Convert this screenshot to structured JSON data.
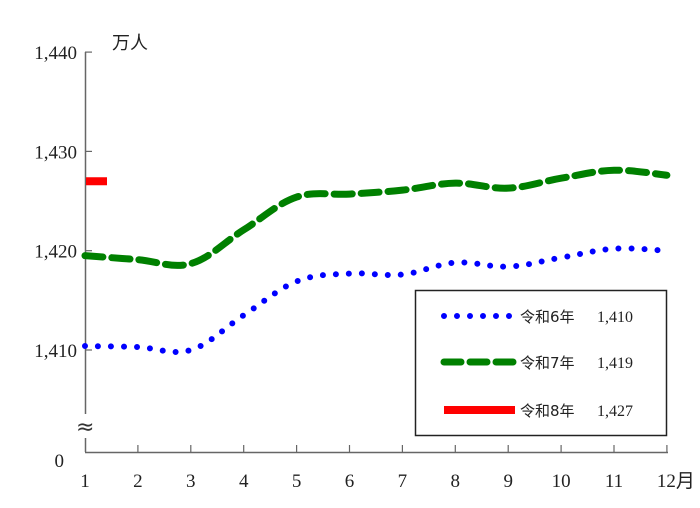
{
  "chart_data": {
    "type": "line",
    "title": "",
    "ylabel": "万人",
    "xlabel": "月",
    "y_unit_label": "万人",
    "x_unit_suffix": "月",
    "ylim": [
      1400,
      1440
    ],
    "axis_break": true,
    "y_ticks": [
      {
        "value": 1440,
        "label": "1,440"
      },
      {
        "value": 1430,
        "label": "1,430"
      },
      {
        "value": 1420,
        "label": "1,420"
      },
      {
        "value": 1410,
        "label": "1,410"
      },
      {
        "value": 0,
        "label": "0"
      }
    ],
    "categories": [
      "1",
      "2",
      "3",
      "4",
      "5",
      "6",
      "7",
      "8",
      "9",
      "10",
      "11",
      "12月"
    ],
    "x": [
      1,
      2,
      3,
      4,
      5,
      6,
      7,
      8,
      9,
      10,
      11,
      12
    ],
    "series": [
      {
        "name": "令和6年",
        "legend_value": "1,410",
        "color": "#0000ff",
        "style": "dotted",
        "values": [
          1410.4,
          1410.3,
          1410.0,
          1413.5,
          1416.9,
          1417.7,
          1417.6,
          1418.8,
          1418.4,
          1419.3,
          1420.2,
          1420.0
        ]
      },
      {
        "name": "令和7年",
        "legend_value": "1,419",
        "color": "#008000",
        "style": "dashed",
        "values": [
          1419.5,
          1419.1,
          1418.7,
          1422.1,
          1425.4,
          1425.7,
          1426.1,
          1426.8,
          1426.3,
          1427.3,
          1428.1,
          1427.6
        ]
      },
      {
        "name": "令和8年",
        "legend_value": "1,427",
        "color": "#ff0000",
        "style": "solid",
        "values": [
          1427.0
        ]
      }
    ],
    "grid": false,
    "legend_position": "lower-right"
  },
  "legend": {
    "items": [
      {
        "label": "令和6年",
        "value": "1,410"
      },
      {
        "label": "令和7年",
        "value": "1,419"
      },
      {
        "label": "令和8年",
        "value": "1,427"
      }
    ]
  },
  "axis": {
    "y_unit": "万人",
    "break_symbol": "≈"
  }
}
